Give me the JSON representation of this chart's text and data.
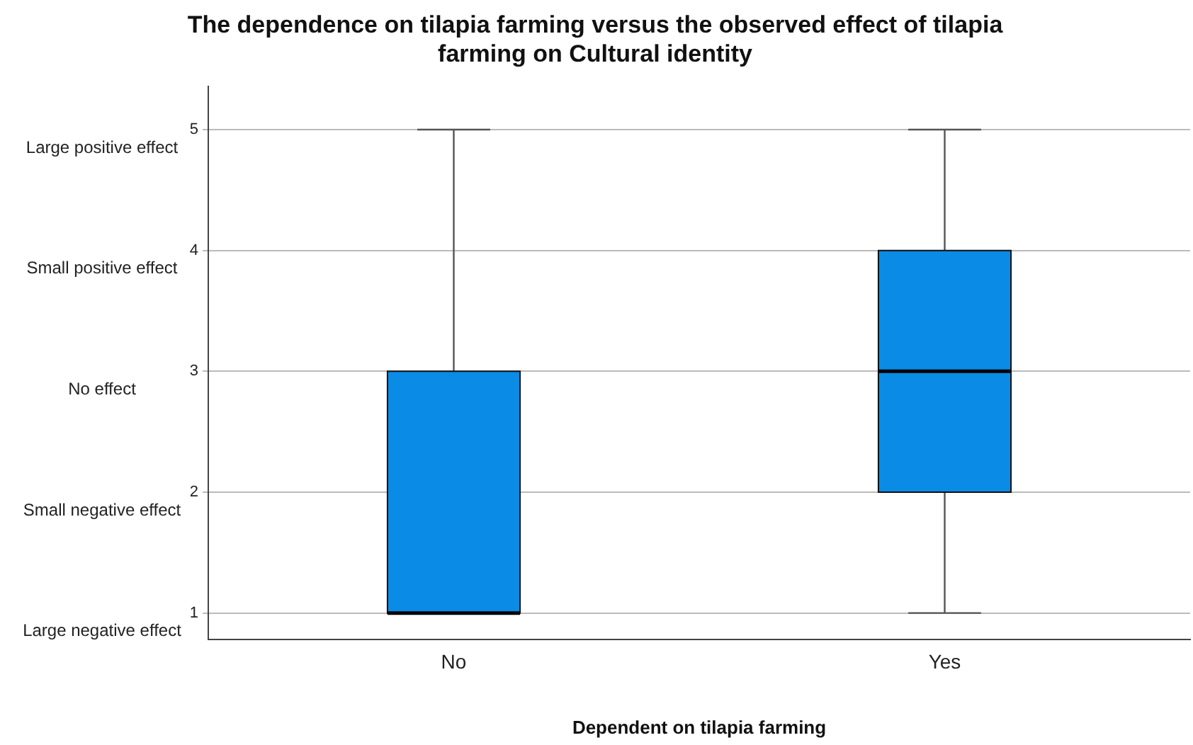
{
  "chart_data": {
    "type": "box",
    "title": "The dependence on tilapia farming versus the observed effect of tilapia farming on Cultural identity",
    "xlabel": "Dependent on tilapia farming",
    "categories": [
      "No",
      "Yes"
    ],
    "boxes": [
      {
        "low": 1,
        "q1": 1,
        "median": 1,
        "q3": 3,
        "high": 5
      },
      {
        "low": 1,
        "q1": 2,
        "median": 3,
        "q3": 4,
        "high": 5
      }
    ],
    "color": "#0a8be6",
    "ylim": [
      0.78,
      5.36
    ],
    "yticks": [
      1,
      2,
      3,
      4,
      5
    ],
    "grid": "y",
    "legend": false,
    "annotations": [
      "Large positive effect",
      "Small positive effect",
      "No effect",
      "Small negative effect",
      "Large negative effect"
    ]
  }
}
